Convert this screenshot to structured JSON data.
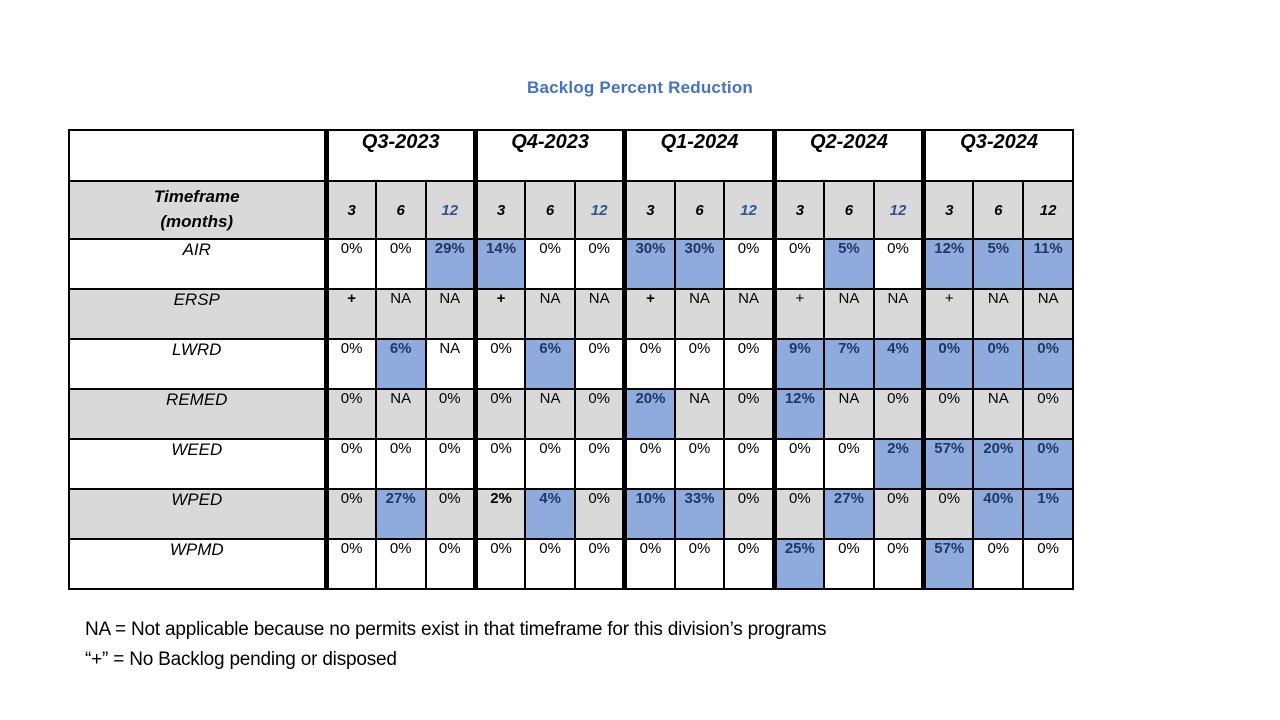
{
  "title": "Backlog Percent Reduction",
  "colors": {
    "title_blue": "#4472C4",
    "highlight_bg": "#8FAADC",
    "highlight_text": "#1F3864",
    "grey_row": "#D9D9D9",
    "month12_blue": "#2F5496"
  },
  "table": {
    "corner_label": "",
    "timeframe_label_line1": "Timeframe",
    "timeframe_label_line2": "(months)",
    "quarters": [
      {
        "label": "Q3-2023",
        "months": [
          "3",
          "6",
          "12"
        ],
        "twelve_blue": true
      },
      {
        "label": "Q4-2023",
        "months": [
          "3",
          "6",
          "12"
        ],
        "twelve_blue": true
      },
      {
        "label": "Q1-2024",
        "months": [
          "3",
          "6",
          "12"
        ],
        "twelve_blue": true
      },
      {
        "label": "Q2-2024",
        "months": [
          "3",
          "6",
          "12"
        ],
        "twelve_blue": true
      },
      {
        "label": "Q3-2024",
        "months": [
          "3",
          "6",
          "12"
        ],
        "twelve_blue": false
      }
    ],
    "rows": [
      {
        "division": "AIR",
        "cells": [
          {
            "v": "0%"
          },
          {
            "v": "0%"
          },
          {
            "v": "29%",
            "hl": true
          },
          {
            "v": "14%",
            "hl": true
          },
          {
            "v": "0%"
          },
          {
            "v": "0%"
          },
          {
            "v": "30%",
            "hl": true
          },
          {
            "v": "30%",
            "hl": true
          },
          {
            "v": "0%"
          },
          {
            "v": "0%"
          },
          {
            "v": "5%",
            "hl": true
          },
          {
            "v": "0%"
          },
          {
            "v": "12%",
            "hl": true
          },
          {
            "v": "5%",
            "hl": true
          },
          {
            "v": "11%",
            "hl": true
          }
        ]
      },
      {
        "division": "ERSP",
        "cells": [
          {
            "v": "+",
            "b": true
          },
          {
            "v": "NA"
          },
          {
            "v": "NA"
          },
          {
            "v": "+",
            "b": true
          },
          {
            "v": "NA"
          },
          {
            "v": "NA"
          },
          {
            "v": "+",
            "b": true
          },
          {
            "v": "NA"
          },
          {
            "v": "NA"
          },
          {
            "v": "+"
          },
          {
            "v": "NA"
          },
          {
            "v": "NA"
          },
          {
            "v": "+"
          },
          {
            "v": "NA"
          },
          {
            "v": "NA"
          }
        ]
      },
      {
        "division": "LWRD",
        "cells": [
          {
            "v": "0%"
          },
          {
            "v": "6%",
            "hl": true
          },
          {
            "v": "NA"
          },
          {
            "v": "0%"
          },
          {
            "v": "6%",
            "hl": true
          },
          {
            "v": "0%"
          },
          {
            "v": "0%"
          },
          {
            "v": "0%"
          },
          {
            "v": "0%"
          },
          {
            "v": "9%",
            "hl": true
          },
          {
            "v": "7%",
            "hl": true
          },
          {
            "v": "4%",
            "hl": true
          },
          {
            "v": "0%",
            "hl": true
          },
          {
            "v": "0%",
            "hl": true
          },
          {
            "v": "0%",
            "hl": true
          }
        ]
      },
      {
        "division": "REMED",
        "cells": [
          {
            "v": "0%"
          },
          {
            "v": "NA"
          },
          {
            "v": "0%"
          },
          {
            "v": "0%"
          },
          {
            "v": "NA"
          },
          {
            "v": "0%"
          },
          {
            "v": "20%",
            "hl": true
          },
          {
            "v": "NA"
          },
          {
            "v": "0%"
          },
          {
            "v": "12%",
            "hl": true
          },
          {
            "v": "NA"
          },
          {
            "v": "0%"
          },
          {
            "v": "0%"
          },
          {
            "v": "NA"
          },
          {
            "v": "0%"
          }
        ]
      },
      {
        "division": "WEED",
        "cells": [
          {
            "v": "0%"
          },
          {
            "v": "0%"
          },
          {
            "v": "0%"
          },
          {
            "v": "0%"
          },
          {
            "v": "0%"
          },
          {
            "v": "0%"
          },
          {
            "v": "0%"
          },
          {
            "v": "0%"
          },
          {
            "v": "0%"
          },
          {
            "v": "0%"
          },
          {
            "v": "0%"
          },
          {
            "v": "2%",
            "hl": true
          },
          {
            "v": "57%",
            "hl": true
          },
          {
            "v": "20%",
            "hl": true
          },
          {
            "v": "0%",
            "hl": true
          }
        ]
      },
      {
        "division": "WPED",
        "cells": [
          {
            "v": "0%"
          },
          {
            "v": "27%",
            "hl": true
          },
          {
            "v": "0%"
          },
          {
            "v": "2%",
            "b": true
          },
          {
            "v": "4%",
            "hl": true
          },
          {
            "v": "0%"
          },
          {
            "v": "10%",
            "hl": true
          },
          {
            "v": "33%",
            "hl": true
          },
          {
            "v": "0%"
          },
          {
            "v": "0%"
          },
          {
            "v": "27%",
            "hl": true
          },
          {
            "v": "0%"
          },
          {
            "v": "0%"
          },
          {
            "v": "40%",
            "hl": true
          },
          {
            "v": "1%",
            "hl": true
          }
        ]
      },
      {
        "division": "WPMD",
        "cells": [
          {
            "v": "0%"
          },
          {
            "v": "0%"
          },
          {
            "v": "0%"
          },
          {
            "v": "0%"
          },
          {
            "v": "0%"
          },
          {
            "v": "0%"
          },
          {
            "v": "0%"
          },
          {
            "v": "0%"
          },
          {
            "v": "0%"
          },
          {
            "v": "25%",
            "hl": true
          },
          {
            "v": "0%"
          },
          {
            "v": "0%"
          },
          {
            "v": "57%",
            "hl": true
          },
          {
            "v": "0%"
          },
          {
            "v": "0%"
          }
        ]
      }
    ]
  },
  "footnotes": [
    "NA = Not applicable because no permits exist in that timeframe for this division’s programs",
    "“+” = No Backlog pending or disposed"
  ]
}
